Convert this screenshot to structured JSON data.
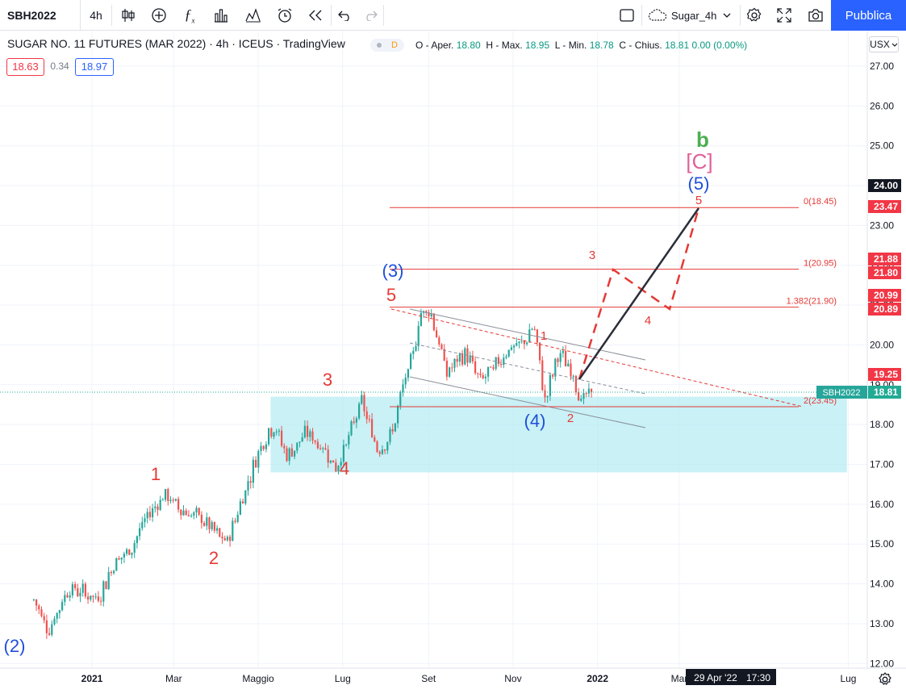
{
  "toolbar": {
    "symbol": "SBH2022",
    "interval": "4h",
    "layout_name": "Sugar_4h",
    "publish_label": "Pubblica"
  },
  "legend": {
    "title": "SUGAR NO. 11 FUTURES (MAR 2022) · 4h · ICEUS · TradingView",
    "badge": "D",
    "open_label": "O - Aper.",
    "open": "18.80",
    "high_label": "H - Max.",
    "high": "18.95",
    "low_label": "L - Min.",
    "low": "18.78",
    "close_label": "C - Chius.",
    "close": "18.81",
    "change": "0.00 (0.00%)",
    "bid": "18.63",
    "spread": "0.34",
    "ask": "18.97"
  },
  "currency_button": "USX",
  "y_axis": {
    "ticks": [
      "27.00",
      "26.00",
      "25.00",
      "24.00",
      "23.00",
      "22.00",
      "21.00",
      "20.00",
      "19.00",
      "18.00",
      "17.00",
      "16.00",
      "15.00",
      "14.00",
      "13.00",
      "12.00"
    ],
    "tags": [
      {
        "text": "24.00",
        "bg": "#131722",
        "fg": "#ffffff"
      },
      {
        "text": "23.47",
        "bg": "#f23645",
        "fg": "#ffffff"
      },
      {
        "text": "21.88",
        "bg": "#f23645",
        "fg": "#ffffff"
      },
      {
        "text": "21.80",
        "bg": "#f23645",
        "fg": "#ffffff"
      },
      {
        "text": "20.99",
        "bg": "#f23645",
        "fg": "#ffffff"
      },
      {
        "text": "20.89",
        "bg": "#f23645",
        "fg": "#ffffff"
      },
      {
        "text": "19.25",
        "bg": "#f23645",
        "fg": "#ffffff"
      },
      {
        "text": "18.81",
        "bg": "#22ab94",
        "fg": "#ffffff"
      }
    ],
    "symbol_tag": "SBH2022"
  },
  "x_axis": {
    "ticks": [
      "2021",
      "Mar",
      "Maggio",
      "Lug",
      "Set",
      "Nov",
      "2022",
      "Mar",
      "Lug"
    ],
    "crosshair_date": "29 Apr '22",
    "crosshair_time": "17:30"
  },
  "fib_levels": [
    {
      "label": "2(23.45)"
    },
    {
      "label": "1.382(21.90)"
    },
    {
      "label": "1(20.95)"
    },
    {
      "label": "0(18.45)"
    }
  ],
  "wave_labels": {
    "w2_blue": "(2)",
    "w1": "1",
    "w2": "2",
    "w3": "3",
    "w4": "4",
    "w5": "5",
    "w3_blue": "(3)",
    "w4_blue": "(4)",
    "w5_blue": "(5)",
    "c_bracket": "[C]",
    "b_green": "b",
    "sub1": "1",
    "sub2": "2",
    "sub3": "3",
    "sub4": "4",
    "sub5": "5"
  },
  "colors": {
    "bull": "#26a69a",
    "bear": "#ef5350",
    "wave_red": "#e53935",
    "wave_blue": "#1e4fd8",
    "wave_pink": "#e0609a",
    "wave_green": "#4caf50",
    "zone": "#b2ebf2",
    "accent": "#2962ff"
  },
  "chart_data": {
    "type": "candlestick",
    "title": "SUGAR NO. 11 FUTURES (MAR 2022)",
    "interval": "4h",
    "ylim": [
      12,
      27.4
    ],
    "price_path": [
      [
        "2020-11-20",
        13.6
      ],
      [
        "2020-12-01",
        12.85
      ],
      [
        "2020-12-15",
        13.9
      ],
      [
        "2020-12-28",
        13.75
      ],
      [
        "2021-01-05",
        13.6
      ],
      [
        "2021-01-18",
        14.6
      ],
      [
        "2021-01-28",
        14.8
      ],
      [
        "2021-02-08",
        15.6
      ],
      [
        "2021-02-22",
        16.25
      ],
      [
        "2021-03-05",
        15.9
      ],
      [
        "2021-03-22",
        15.6
      ],
      [
        "2021-04-08",
        15.0
      ],
      [
        "2021-04-22",
        16.4
      ],
      [
        "2021-05-03",
        17.5
      ],
      [
        "2021-05-12",
        18.0
      ],
      [
        "2021-05-22",
        17.2
      ],
      [
        "2021-06-05",
        17.8
      ],
      [
        "2021-06-20",
        17.3
      ],
      [
        "2021-06-26",
        16.9
      ],
      [
        "2021-07-08",
        17.9
      ],
      [
        "2021-07-14",
        18.6
      ],
      [
        "2021-07-26",
        17.4
      ],
      [
        "2021-08-05",
        17.7
      ],
      [
        "2021-08-14",
        19.0
      ],
      [
        "2021-08-20",
        19.6
      ],
      [
        "2021-08-26",
        20.8
      ],
      [
        "2021-09-02",
        20.9
      ],
      [
        "2021-09-14",
        19.3
      ],
      [
        "2021-09-28",
        19.8
      ],
      [
        "2021-10-08",
        19.1
      ],
      [
        "2021-10-18",
        19.4
      ],
      [
        "2021-10-28",
        19.9
      ],
      [
        "2021-11-08",
        20.0
      ],
      [
        "2021-11-16",
        20.5
      ],
      [
        "2021-11-24",
        18.6
      ],
      [
        "2021-12-04",
        19.8
      ],
      [
        "2021-12-14",
        19.3
      ],
      [
        "2021-12-20",
        18.6
      ],
      [
        "2021-12-28",
        18.8
      ]
    ],
    "fibonacci": [
      {
        "ratio": 0,
        "price": 18.45
      },
      {
        "ratio": 1,
        "price": 20.95
      },
      {
        "ratio": 1.382,
        "price": 21.9
      },
      {
        "ratio": 2,
        "price": 23.45
      }
    ],
    "support_zone": {
      "from": "2021-05-10",
      "to": "2022-06-30",
      "low": 16.8,
      "high": 18.7
    },
    "projection_target": 23.47,
    "last_price": 18.81
  }
}
